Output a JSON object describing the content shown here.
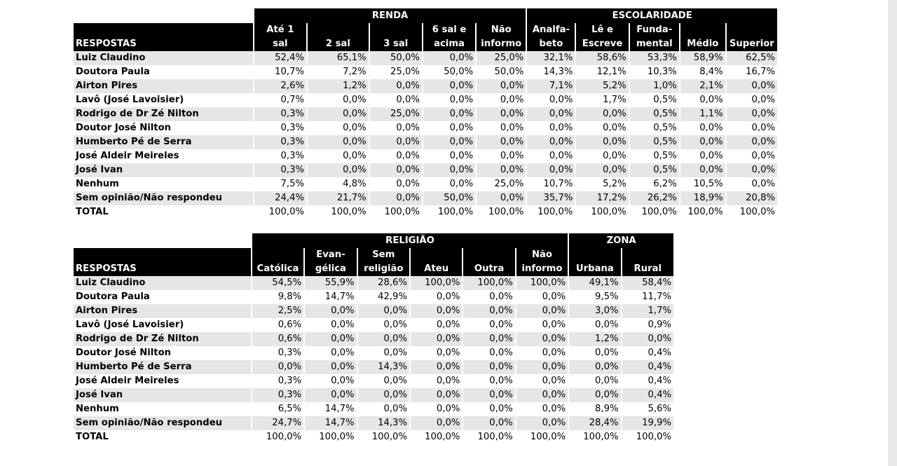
{
  "table1": {
    "groups": [
      {
        "label": "RENDA"
      },
      {
        "label": "ESCOLARIDADE"
      }
    ],
    "header_label": "RESPOSTAS",
    "columns": [
      {
        "l1": "Até 1",
        "l2": "sal"
      },
      {
        "l1": "",
        "l2": "2 sal"
      },
      {
        "l1": "",
        "l2": "3 sal"
      },
      {
        "l1": "6 sal e",
        "l2": "acima"
      },
      {
        "l1": "Não",
        "l2": "informo"
      },
      {
        "l1": "Analfa-",
        "l2": "beto"
      },
      {
        "l1": "Lê e",
        "l2": "Escreve"
      },
      {
        "l1": "Funda-",
        "l2": "mental"
      },
      {
        "l1": "",
        "l2": "Médio"
      },
      {
        "l1": "",
        "l2": "Superior"
      }
    ],
    "rows": [
      {
        "label": "Luiz Claudino",
        "values": [
          "52,4%",
          "65,1%",
          "50,0%",
          "0,0%",
          "25,0%",
          "32,1%",
          "58,6%",
          "53,3%",
          "58,9%",
          "62,5%"
        ]
      },
      {
        "label": "Doutora Paula",
        "values": [
          "10,7%",
          "7,2%",
          "25,0%",
          "50,0%",
          "50,0%",
          "14,3%",
          "12,1%",
          "10,3%",
          "8,4%",
          "16,7%"
        ]
      },
      {
        "label": "Airton Pires",
        "values": [
          "2,6%",
          "1,2%",
          "0,0%",
          "0,0%",
          "0,0%",
          "7,1%",
          "5,2%",
          "1,0%",
          "2,1%",
          "0,0%"
        ]
      },
      {
        "label": "Lavô (José Lavoisier)",
        "values": [
          "0,7%",
          "0,0%",
          "0,0%",
          "0,0%",
          "0,0%",
          "0,0%",
          "1,7%",
          "0,5%",
          "0,0%",
          "0,0%"
        ]
      },
      {
        "label": "Rodrigo de Dr Zé Nilton",
        "values": [
          "0,3%",
          "0,0%",
          "25,0%",
          "0,0%",
          "0,0%",
          "0,0%",
          "0,0%",
          "0,5%",
          "1,1%",
          "0,0%"
        ]
      },
      {
        "label": "Doutor José Nilton",
        "values": [
          "0,3%",
          "0,0%",
          "0,0%",
          "0,0%",
          "0,0%",
          "0,0%",
          "0,0%",
          "0,5%",
          "0,0%",
          "0,0%"
        ]
      },
      {
        "label": "Humberto Pé de Serra",
        "values": [
          "0,3%",
          "0,0%",
          "0,0%",
          "0,0%",
          "0,0%",
          "0,0%",
          "0,0%",
          "0,5%",
          "0,0%",
          "0,0%"
        ]
      },
      {
        "label": "José Aldeir Meireles",
        "values": [
          "0,3%",
          "0,0%",
          "0,0%",
          "0,0%",
          "0,0%",
          "0,0%",
          "0,0%",
          "0,5%",
          "0,0%",
          "0,0%"
        ]
      },
      {
        "label": "José Ivan",
        "values": [
          "0,3%",
          "0,0%",
          "0,0%",
          "0,0%",
          "0,0%",
          "0,0%",
          "0,0%",
          "0,5%",
          "0,0%",
          "0,0%"
        ]
      },
      {
        "label": "Nenhum",
        "values": [
          "7,5%",
          "4,8%",
          "0,0%",
          "0,0%",
          "25,0%",
          "10,7%",
          "5,2%",
          "6,2%",
          "10,5%",
          "0,0%"
        ]
      },
      {
        "label": "Sem opinião/Não respondeu",
        "values": [
          "24,4%",
          "21,7%",
          "0,0%",
          "50,0%",
          "0,0%",
          "35,7%",
          "17,2%",
          "26,2%",
          "18,9%",
          "20,8%"
        ]
      },
      {
        "label": "TOTAL",
        "values": [
          "100,0%",
          "100,0%",
          "100,0%",
          "100,0%",
          "100,0%",
          "100,0%",
          "100,0%",
          "100,0%",
          "100,0%",
          "100,0%"
        ]
      }
    ]
  },
  "table2": {
    "groups": [
      {
        "label": "RELIGIÃO"
      },
      {
        "label": "ZONA"
      }
    ],
    "header_label": "RESPOSTAS",
    "columns": [
      {
        "l1": "",
        "l2": "Católica"
      },
      {
        "l1": "Evan-",
        "l2": "gélica"
      },
      {
        "l1": "Sem",
        "l2": "religião"
      },
      {
        "l1": "",
        "l2": "Ateu"
      },
      {
        "l1": "",
        "l2": "Outra"
      },
      {
        "l1": "Não",
        "l2": "informo"
      },
      {
        "l1": "",
        "l2": "Urbana"
      },
      {
        "l1": "",
        "l2": "Rural"
      }
    ],
    "rows": [
      {
        "label": "Luiz Claudino",
        "values": [
          "54,5%",
          "55,9%",
          "28,6%",
          "100,0%",
          "100,0%",
          "100,0%",
          "49,1%",
          "58,4%"
        ]
      },
      {
        "label": "Doutora Paula",
        "values": [
          "9,8%",
          "14,7%",
          "42,9%",
          "0,0%",
          "0,0%",
          "0,0%",
          "9,5%",
          "11,7%"
        ]
      },
      {
        "label": "Airton Pires",
        "values": [
          "2,5%",
          "0,0%",
          "0,0%",
          "0,0%",
          "0,0%",
          "0,0%",
          "3,0%",
          "1,7%"
        ]
      },
      {
        "label": "Lavô (José Lavoisier)",
        "values": [
          "0,6%",
          "0,0%",
          "0,0%",
          "0,0%",
          "0,0%",
          "0,0%",
          "0,0%",
          "0,9%"
        ]
      },
      {
        "label": "Rodrigo de Dr Zé Nilton",
        "values": [
          "0,6%",
          "0,0%",
          "0,0%",
          "0,0%",
          "0,0%",
          "0,0%",
          "1,2%",
          "0,0%"
        ]
      },
      {
        "label": "Doutor José Nilton",
        "values": [
          "0,3%",
          "0,0%",
          "0,0%",
          "0,0%",
          "0,0%",
          "0,0%",
          "0,0%",
          "0,4%"
        ]
      },
      {
        "label": "Humberto Pé de Serra",
        "values": [
          "0,0%",
          "0,0%",
          "14,3%",
          "0,0%",
          "0,0%",
          "0,0%",
          "0,0%",
          "0,4%"
        ]
      },
      {
        "label": "José Aldeir Meireles",
        "values": [
          "0,3%",
          "0,0%",
          "0,0%",
          "0,0%",
          "0,0%",
          "0,0%",
          "0,0%",
          "0,4%"
        ]
      },
      {
        "label": "José Ivan",
        "values": [
          "0,3%",
          "0,0%",
          "0,0%",
          "0,0%",
          "0,0%",
          "0,0%",
          "0,0%",
          "0,4%"
        ]
      },
      {
        "label": "Nenhum",
        "values": [
          "6,5%",
          "14,7%",
          "0,0%",
          "0,0%",
          "0,0%",
          "0,0%",
          "8,9%",
          "5,6%"
        ]
      },
      {
        "label": "Sem opinião/Não respondeu",
        "values": [
          "24,7%",
          "14,7%",
          "14,3%",
          "0,0%",
          "0,0%",
          "0,0%",
          "28,4%",
          "19,9%"
        ]
      },
      {
        "label": "TOTAL",
        "values": [
          "100,0%",
          "100,0%",
          "100,0%",
          "100,0%",
          "100,0%",
          "100,0%",
          "100,0%",
          "100,0%"
        ]
      }
    ]
  }
}
